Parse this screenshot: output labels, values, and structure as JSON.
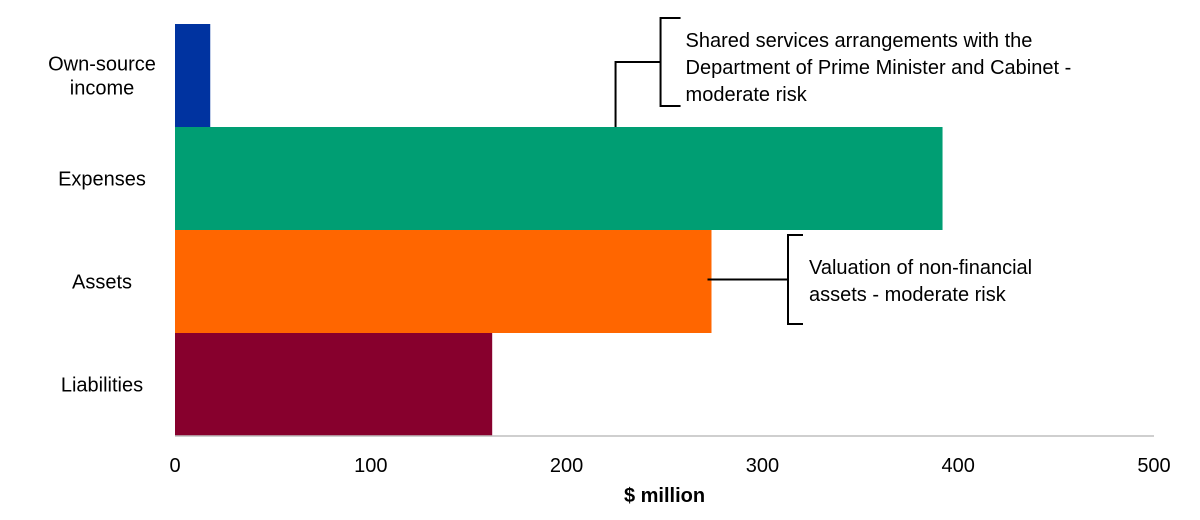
{
  "chart_data": {
    "type": "bar",
    "orientation": "horizontal",
    "categories": [
      [
        "Own-source",
        "income"
      ],
      [
        "Expenses"
      ],
      [
        "Assets"
      ],
      [
        "Liabilities"
      ]
    ],
    "values": [
      18,
      392,
      274,
      162
    ],
    "colors": [
      "#0033a0",
      "#009e73",
      "#ff6600",
      "#87002d"
    ],
    "xlabel": "$ million",
    "xlim": [
      0,
      500
    ],
    "xticks": [
      "0",
      "100",
      "200",
      "300",
      "400",
      "500"
    ],
    "xtick_values": [
      0,
      100,
      200,
      300,
      400,
      500
    ],
    "grid": false,
    "annotations": [
      {
        "category_index": 1,
        "value": 225,
        "lines": [
          "Shared services arrangements with the",
          "Department of Prime Minister and Cabinet -",
          "moderate risk"
        ]
      },
      {
        "category_index": 2,
        "value": 274,
        "lines": [
          "Valuation of non-financial",
          "assets - moderate risk"
        ]
      }
    ]
  }
}
